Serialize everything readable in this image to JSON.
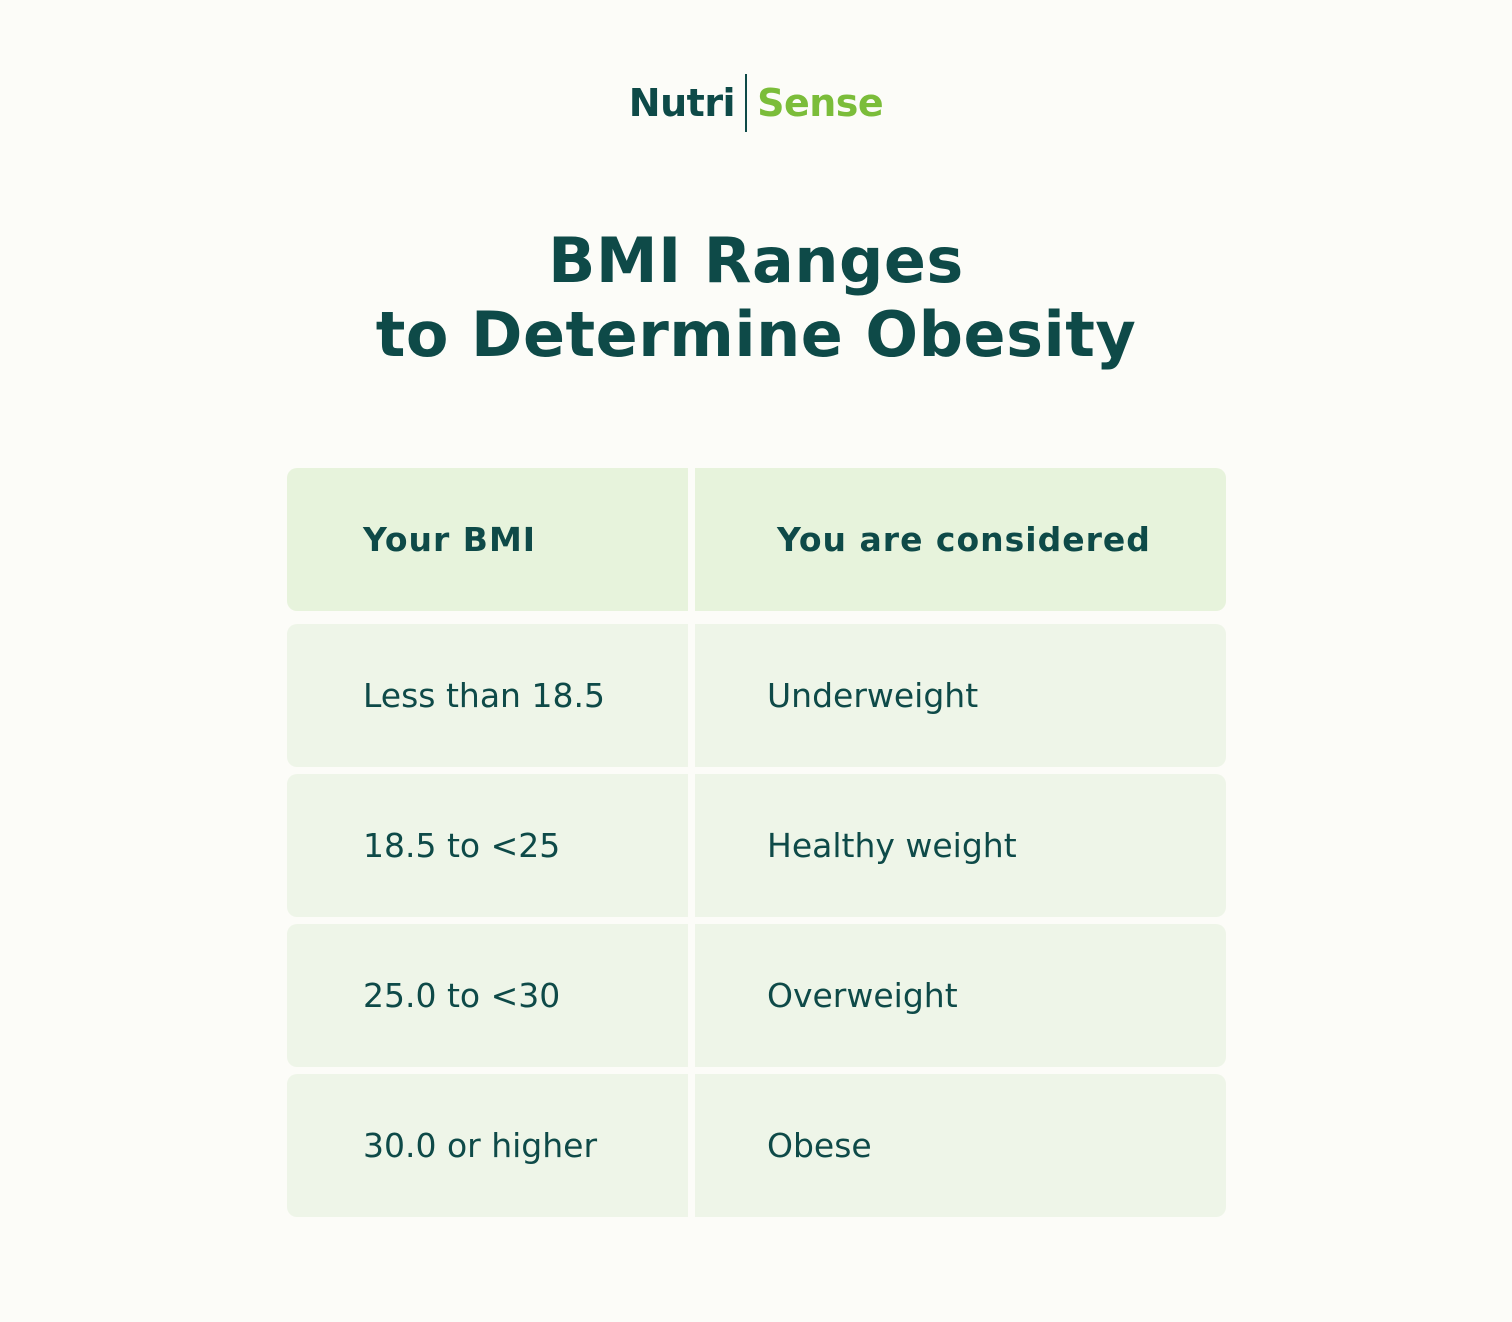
{
  "logo": {
    "part1": "Nutri",
    "part2": "Sense",
    "colors": {
      "primary": "#0e4a48",
      "accent": "#7bbd3a"
    }
  },
  "title": {
    "line1": "BMI Ranges",
    "line2": "to Determine Obesity"
  },
  "table": {
    "headers": [
      "Your BMI",
      "You are considered"
    ],
    "rows": [
      [
        "Less than 18.5",
        "Underweight"
      ],
      [
        "18.5 to <25",
        "Healthy weight"
      ],
      [
        "25.0 to <30",
        "Overweight"
      ],
      [
        "30.0 or higher",
        "Obese"
      ]
    ]
  }
}
